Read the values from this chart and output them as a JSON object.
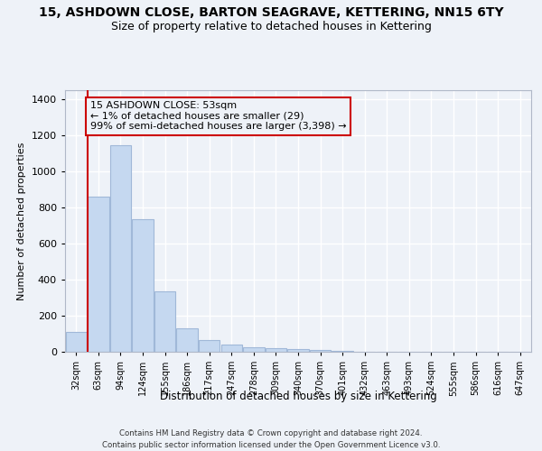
{
  "title": "15, ASHDOWN CLOSE, BARTON SEAGRAVE, KETTERING, NN15 6TY",
  "subtitle": "Size of property relative to detached houses in Kettering",
  "xlabel": "Distribution of detached houses by size in Kettering",
  "ylabel": "Number of detached properties",
  "footnote1": "Contains HM Land Registry data © Crown copyright and database right 2024.",
  "footnote2": "Contains public sector information licensed under the Open Government Licence v3.0.",
  "bar_labels": [
    "32sqm",
    "63sqm",
    "94sqm",
    "124sqm",
    "155sqm",
    "186sqm",
    "217sqm",
    "247sqm",
    "278sqm",
    "309sqm",
    "340sqm",
    "370sqm",
    "401sqm",
    "432sqm",
    "463sqm",
    "493sqm",
    "524sqm",
    "555sqm",
    "586sqm",
    "616sqm",
    "647sqm"
  ],
  "bar_values": [
    110,
    860,
    1145,
    735,
    335,
    130,
    65,
    38,
    25,
    18,
    15,
    8,
    4,
    2,
    1,
    1,
    0,
    0,
    0,
    0,
    0
  ],
  "bar_color": "#c5d8f0",
  "bar_edgecolor": "#a0b8d8",
  "highlight_box_text": "15 ASHDOWN CLOSE: 53sqm\n← 1% of detached houses are smaller (29)\n99% of semi-detached houses are larger (3,398) →",
  "highlight_box_color": "#cc0000",
  "ylim": [
    0,
    1450
  ],
  "yticks": [
    0,
    200,
    400,
    600,
    800,
    1000,
    1200,
    1400
  ],
  "bg_color": "#eef2f8",
  "grid_color": "#ffffff",
  "title_fontsize": 10,
  "subtitle_fontsize": 9,
  "annot_fontsize": 8
}
